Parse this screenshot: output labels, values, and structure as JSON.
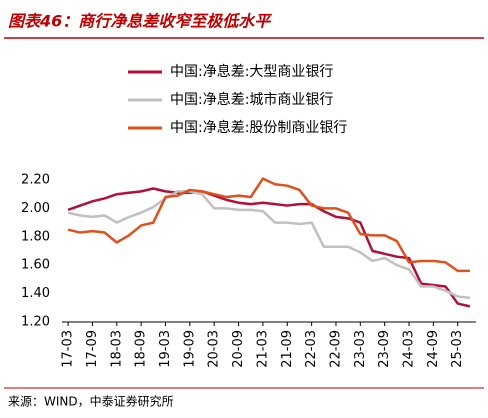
{
  "chart_data": {
    "type": "line",
    "title": "图表46：商行净息差收窄至极低水平",
    "source": "来源：WIND，中泰证券研究所",
    "categories": [
      "17-03",
      null,
      "17-09",
      null,
      "18-03",
      null,
      "18-09",
      null,
      "19-03",
      null,
      "19-09",
      null,
      "20-03",
      null,
      "20-09",
      null,
      "21-03",
      null,
      "21-09",
      null,
      "22-03",
      null,
      "22-09",
      null,
      "23-03",
      null,
      "23-09",
      null,
      "24-03",
      null,
      "24-09",
      null,
      "25-03",
      null
    ],
    "series": [
      {
        "name": "中国:净息差:大型商业银行",
        "color": "#b0103a",
        "values": [
          1.99,
          2.02,
          2.05,
          2.07,
          2.1,
          2.11,
          2.12,
          2.14,
          2.12,
          2.11,
          2.11,
          2.12,
          2.09,
          2.06,
          2.04,
          2.03,
          2.04,
          2.03,
          2.02,
          2.03,
          2.03,
          1.98,
          1.94,
          1.93,
          1.9,
          1.7,
          1.68,
          1.66,
          1.65,
          1.47,
          1.46,
          1.45,
          1.33,
          1.31
        ]
      },
      {
        "name": "中国:净息差:城市商业银行",
        "color": "#c0c0c0",
        "values": [
          1.97,
          1.95,
          1.94,
          1.95,
          1.9,
          1.94,
          1.97,
          2.01,
          2.07,
          2.12,
          2.12,
          2.1,
          2.0,
          2.0,
          1.99,
          1.99,
          1.98,
          1.9,
          1.9,
          1.89,
          1.9,
          1.73,
          1.73,
          1.73,
          1.69,
          1.63,
          1.65,
          1.6,
          1.57,
          1.45,
          1.45,
          1.42,
          1.38,
          1.37
        ]
      },
      {
        "name": "中国:净息差:股份制商业银行",
        "color": "#e0501a",
        "values": [
          1.85,
          1.83,
          1.84,
          1.83,
          1.76,
          1.81,
          1.88,
          1.9,
          2.08,
          2.09,
          2.13,
          2.12,
          2.1,
          2.08,
          2.09,
          2.08,
          2.21,
          2.17,
          2.16,
          2.13,
          2.02,
          2.0,
          2.0,
          1.97,
          1.82,
          1.81,
          1.81,
          1.77,
          1.62,
          1.63,
          1.63,
          1.62,
          1.56,
          1.56
        ]
      }
    ],
    "ylim": [
      1.2,
      2.2
    ],
    "yticks": [
      {
        "value": 1.2,
        "label": "1.20"
      },
      {
        "value": 1.4,
        "label": "1.40"
      },
      {
        "value": 1.6,
        "label": "1.60"
      },
      {
        "value": 1.8,
        "label": "1.80"
      },
      {
        "value": 2.0,
        "label": "2.00"
      },
      {
        "value": 2.2,
        "label": "2.20"
      }
    ],
    "grid": false,
    "legend": "top"
  }
}
